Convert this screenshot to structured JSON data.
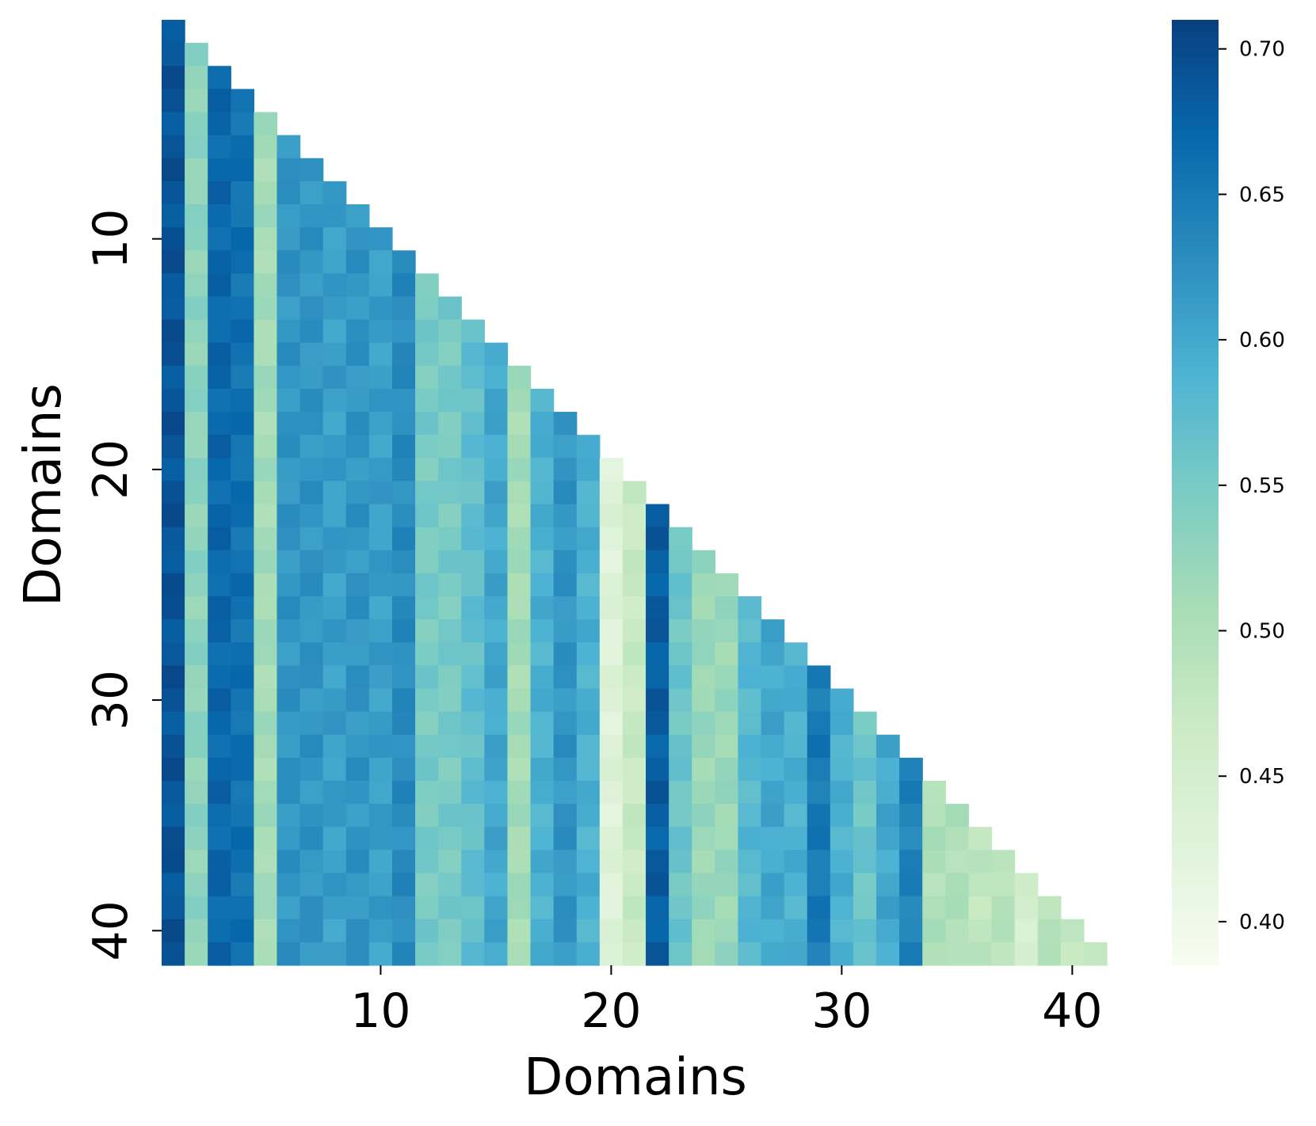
{
  "chart_data": {
    "type": "heatmap",
    "title": "",
    "xlabel": "Domains",
    "ylabel": "Domains",
    "n": 41,
    "lower_triangular": true,
    "colormap": "GnBu",
    "x_ticks": [
      10,
      20,
      30,
      40
    ],
    "y_ticks": [
      10,
      20,
      30,
      40
    ],
    "colorbar": {
      "range": [
        0.385,
        0.71
      ],
      "ticks": [
        "0.40",
        "0.45",
        "0.50",
        "0.55",
        "0.60",
        "0.65",
        "0.70"
      ],
      "tick_values": [
        0.4,
        0.45,
        0.5,
        0.55,
        0.6,
        0.65,
        0.7
      ]
    },
    "column_base_values": [
      0.69,
      0.53,
      0.67,
      0.66,
      0.51,
      0.62,
      0.62,
      0.61,
      0.62,
      0.61,
      0.63,
      0.55,
      0.55,
      0.57,
      0.6,
      0.51,
      0.59,
      0.62,
      0.59,
      0.43,
      0.47,
      0.68,
      0.56,
      0.52,
      0.52,
      0.58,
      0.6,
      0.59,
      0.65,
      0.59,
      0.56,
      0.6,
      0.64,
      0.5,
      0.5,
      0.48,
      0.49,
      0.45,
      0.49,
      0.48,
      0.47
    ]
  }
}
